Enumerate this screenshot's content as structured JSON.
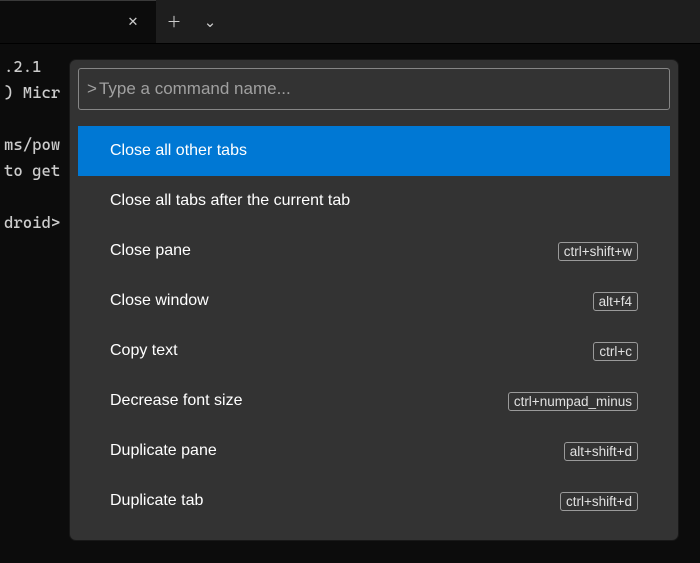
{
  "colors": {
    "background": "#0c0c0c",
    "titlebar": "#1e1e1e",
    "palette_bg": "#333333",
    "selected_bg": "#0078d4",
    "search_border": "#868686",
    "shortcut_border": "#9a9a9a",
    "text": "#ffffff",
    "muted": "#a0a0a0"
  },
  "tab": {
    "close_glyph": "✕"
  },
  "tabbar": {
    "new_glyph": "＋",
    "dropdown_glyph": "⌄"
  },
  "terminal": {
    "lines": [
      ".2.1",
      ") Micr",
      "",
      "ms/pow",
      "to get",
      "",
      "droid>"
    ]
  },
  "palette": {
    "search_prefix": ">",
    "search_placeholder": "Type a command name...",
    "commands": [
      {
        "label": "Close all other tabs",
        "shortcut": "",
        "selected": true
      },
      {
        "label": "Close all tabs after the current tab",
        "shortcut": "",
        "selected": false
      },
      {
        "label": "Close pane",
        "shortcut": "ctrl+shift+w",
        "selected": false
      },
      {
        "label": "Close window",
        "shortcut": "alt+f4",
        "selected": false
      },
      {
        "label": "Copy text",
        "shortcut": "ctrl+c",
        "selected": false
      },
      {
        "label": "Decrease font size",
        "shortcut": "ctrl+numpad_minus",
        "selected": false
      },
      {
        "label": "Duplicate pane",
        "shortcut": "alt+shift+d",
        "selected": false
      },
      {
        "label": "Duplicate tab",
        "shortcut": "ctrl+shift+d",
        "selected": false
      }
    ]
  }
}
